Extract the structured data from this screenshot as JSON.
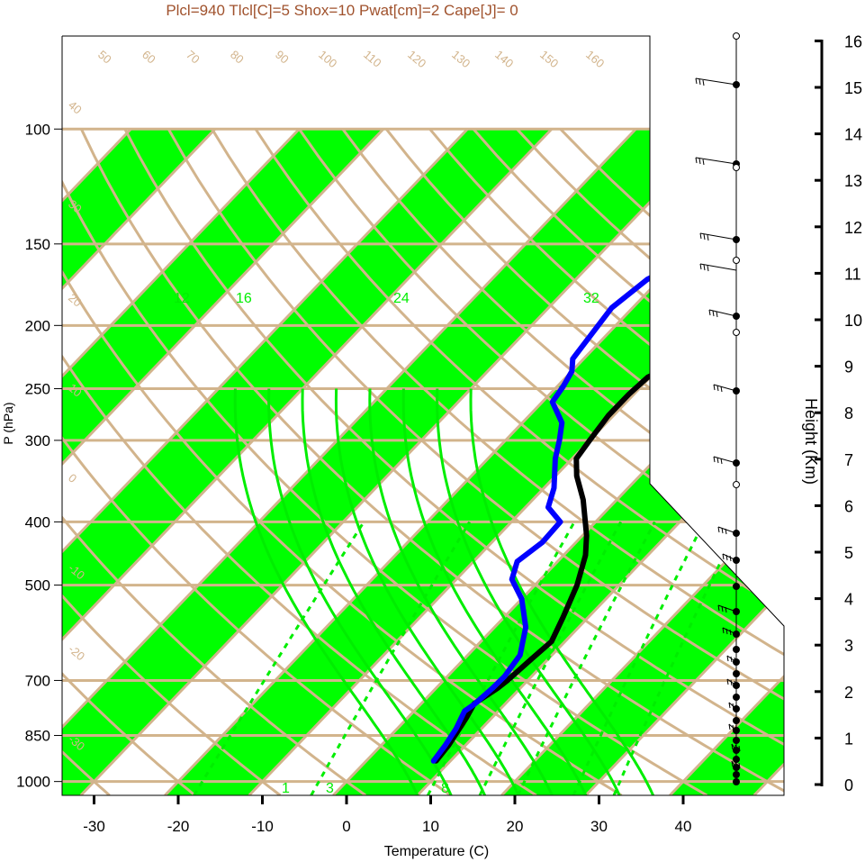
{
  "title": "Plcl=940 Tlcl[C]=5 Shox=10 Pwat[cm]=2 Cape[J]= 0",
  "colors": {
    "title": "#a0522d",
    "band": "#00ff00",
    "grid": "#d2b48c",
    "mixing": "#00ee00",
    "temperature": "#000000",
    "dewpoint": "#0000ff"
  },
  "chart_data": {
    "type": "line",
    "title": "Plcl=940 Tlcl[C]=5 Shox=10 Pwat[cm]=2 Cape[J]= 0",
    "xlabel": "Temperature (C)",
    "ylabel": "P (hPa)",
    "xlim": [
      -33,
      52
    ],
    "ylim": [
      1050,
      100
    ],
    "x_ticks": [
      "-30",
      "-20",
      "-10",
      "0",
      "10",
      "20",
      "30",
      "40"
    ],
    "y_ticks": [
      "100",
      "150",
      "200",
      "250",
      "300",
      "400",
      "500",
      "700",
      "850",
      "1000"
    ],
    "series": [
      {
        "kind": "temperature",
        "points": [
          [
            8.3,
            930
          ],
          [
            8.0,
            880
          ],
          [
            7.0,
            800
          ],
          [
            6.3,
            760
          ],
          [
            7.3,
            720
          ],
          [
            7.6,
            700
          ],
          [
            8.0,
            650
          ],
          [
            8.4,
            610
          ],
          [
            7.0,
            560
          ],
          [
            5.0,
            500
          ],
          [
            2.6,
            450
          ],
          [
            0.5,
            420
          ],
          [
            -4.0,
            370
          ],
          [
            -7.5,
            340
          ],
          [
            -9.5,
            320
          ],
          [
            -10.0,
            300
          ],
          [
            -10.6,
            275
          ],
          [
            -10.6,
            255
          ],
          [
            -10.3,
            240
          ],
          [
            -5.6,
            215
          ],
          [
            -3.3,
            200
          ],
          [
            0.3,
            180
          ],
          [
            7.2,
            152
          ],
          [
            10.5,
            140
          ],
          [
            12.6,
            128
          ],
          [
            14.2,
            118
          ],
          [
            15.6,
            110
          ]
        ]
      },
      {
        "kind": "dewpoint",
        "points": [
          [
            8.0,
            930
          ],
          [
            7.6,
            880
          ],
          [
            7.0,
            830
          ],
          [
            6.0,
            780
          ],
          [
            6.4,
            760
          ],
          [
            6.7,
            720
          ],
          [
            6.8,
            690
          ],
          [
            6.2,
            640
          ],
          [
            3.7,
            580
          ],
          [
            0.0,
            525
          ],
          [
            -3.4,
            490
          ],
          [
            -4.8,
            460
          ],
          [
            -4.0,
            430
          ],
          [
            -4.2,
            400
          ],
          [
            -7.3,
            380
          ],
          [
            -8.8,
            355
          ],
          [
            -12.0,
            320
          ],
          [
            -13.6,
            300
          ],
          [
            -15.3,
            282
          ],
          [
            -18.8,
            262
          ],
          [
            -19.3,
            248
          ],
          [
            -20.0,
            235
          ],
          [
            -21.3,
            225
          ],
          [
            -22.5,
            188
          ],
          [
            -21.5,
            170
          ],
          [
            -17.4,
            150
          ],
          [
            -6.9,
            108
          ]
        ]
      }
    ],
    "isotherm_labels": [
      "50",
      "60",
      "70",
      "80",
      "90",
      "100",
      "110",
      "120",
      "130",
      "140",
      "150",
      "160",
      "40",
      "30",
      "20",
      "10",
      "0",
      "-10",
      "-20",
      "-30"
    ],
    "mixing_ratio_labels": [
      "12",
      "16",
      "24",
      "32",
      "1",
      "3",
      "8"
    ],
    "right_edge_labels": [
      "30",
      "20",
      "10",
      "0",
      "10",
      "20",
      "30"
    ],
    "height_axis": {
      "label": "Height (Km)",
      "ticks": [
        "0",
        "1",
        "2",
        "3",
        "4",
        "5",
        "6",
        "7",
        "8",
        "9",
        "10",
        "11",
        "12",
        "13",
        "14",
        "15",
        "16"
      ]
    }
  }
}
